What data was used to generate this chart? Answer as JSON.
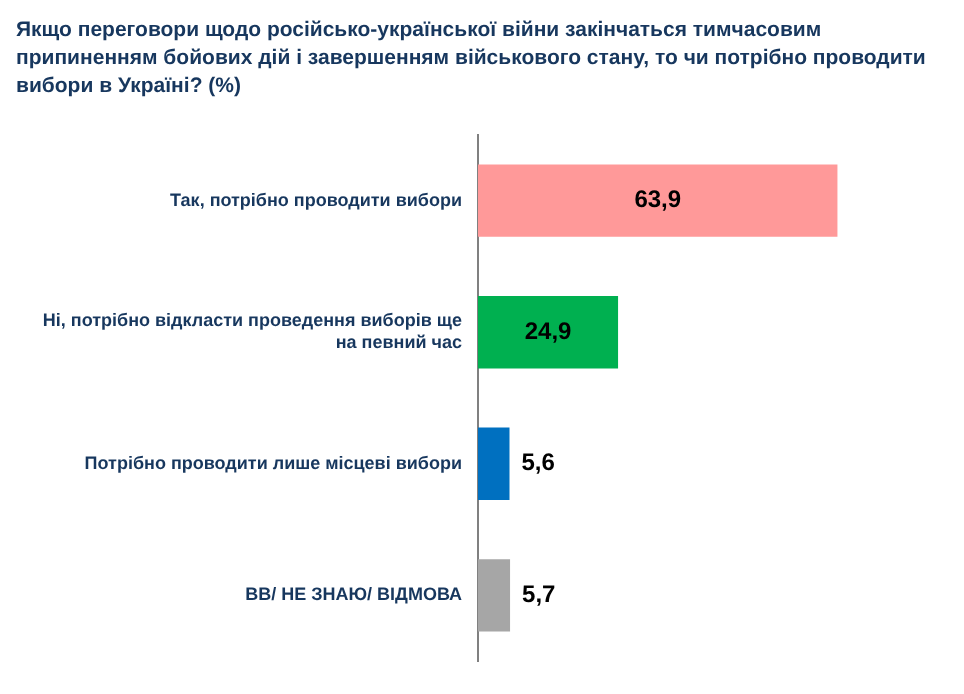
{
  "chart_data": {
    "type": "bar",
    "orientation": "horizontal",
    "title": "Якщо переговори щодо російсько-української війни закінчаться тимчасовим припиненням бойових дій і завершенням військового стану, то чи потрібно проводити вибори в Україні? (%)",
    "categories": [
      "Так, потрібно проводити вибори",
      "Ні, потрібно відкласти проведення виборів ще на певний час",
      "Потрібно проводити лише місцеві вибори",
      "ВВ/ НЕ ЗНАЮ/ ВІДМОВА"
    ],
    "values": [
      63.9,
      24.9,
      5.6,
      5.7
    ],
    "colors": [
      "#ff9999",
      "#00b050",
      "#0070c0",
      "#a6a6a6"
    ],
    "value_labels": [
      "63,9",
      "24,9",
      "5,6",
      "5,7"
    ],
    "grid": false,
    "legend": false
  }
}
